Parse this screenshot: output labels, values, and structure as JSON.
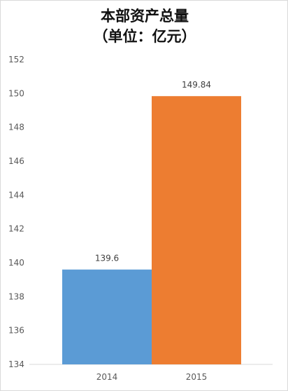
{
  "chart_data": {
    "type": "bar",
    "title_lines": [
      "本部资产总量",
      "（单位：亿元）"
    ],
    "categories": [
      "2014",
      "2015"
    ],
    "values": [
      139.6,
      149.84
    ],
    "value_labels": [
      "139.6",
      "149.84"
    ],
    "ylim": [
      134,
      152
    ],
    "yticks": [
      134,
      136,
      138,
      140,
      142,
      144,
      146,
      148,
      150,
      152
    ],
    "grid": false,
    "colors": [
      "#5b9bd5",
      "#ed7d31"
    ]
  }
}
